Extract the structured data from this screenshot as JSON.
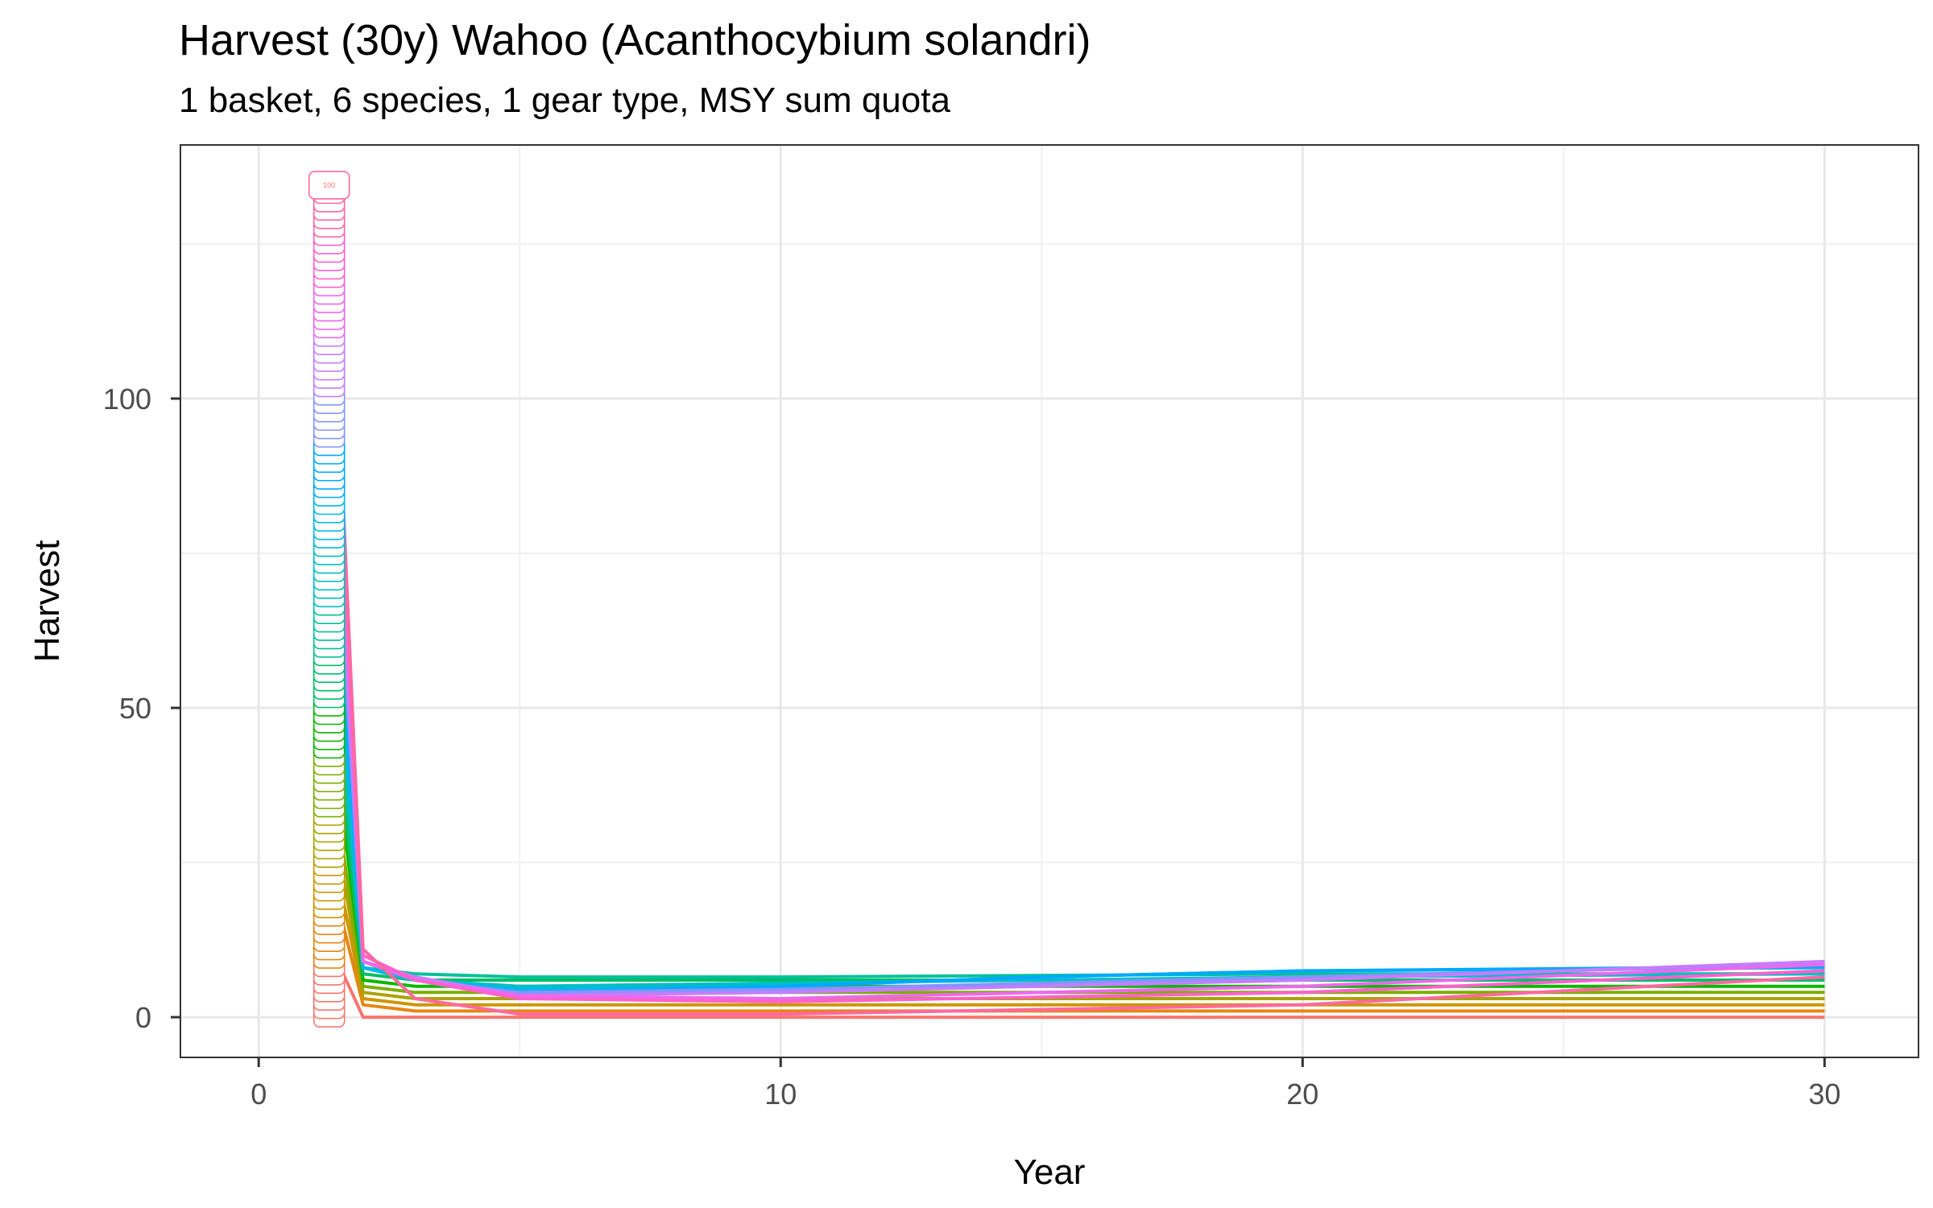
{
  "chart_data": {
    "type": "line",
    "title": "Harvest (30y) Wahoo (Acanthocybium solandri)",
    "subtitle": "1 basket, 6 species, 1 gear type, MSY sum quota",
    "xlabel": "Year",
    "ylabel": "Harvest",
    "xlim": [
      -1.5,
      31.8
    ],
    "ylim": [
      -6.5,
      141
    ],
    "xticks": [
      0,
      10,
      20,
      30
    ],
    "yticks": [
      0,
      50,
      100
    ],
    "grid": true,
    "legend": "none",
    "label_stack": {
      "count": 100,
      "x": 1.35,
      "y_start": 0,
      "y_end": 134.5,
      "shown_label": "100"
    },
    "series": [
      {
        "color": "#F8766D",
        "x": [
          1.35,
          2,
          3,
          5,
          10,
          20,
          30
        ],
        "y": [
          12,
          0,
          0,
          0,
          0,
          0,
          0
        ]
      },
      {
        "color": "#E68613",
        "x": [
          1.35,
          2,
          3,
          5,
          10,
          20,
          30
        ],
        "y": [
          24,
          2,
          1,
          1,
          1,
          1,
          1
        ]
      },
      {
        "color": "#CD9600",
        "x": [
          1.35,
          2,
          3,
          5,
          10,
          20,
          30
        ],
        "y": [
          30,
          3,
          2,
          2,
          2,
          2,
          2
        ]
      },
      {
        "color": "#ABA300",
        "x": [
          1.35,
          2,
          3,
          5,
          10,
          20,
          30
        ],
        "y": [
          36,
          4,
          3,
          3,
          3,
          3,
          3
        ]
      },
      {
        "color": "#7CAE00",
        "x": [
          1.35,
          2,
          3,
          5,
          10,
          20,
          30
        ],
        "y": [
          42,
          5,
          4,
          4,
          4,
          4,
          4
        ]
      },
      {
        "color": "#0CB702",
        "x": [
          1.35,
          2,
          3,
          5,
          10,
          20,
          30
        ],
        "y": [
          50,
          6,
          5,
          5,
          5,
          5,
          5
        ]
      },
      {
        "color": "#00BE67",
        "x": [
          1.35,
          2,
          3,
          5,
          10,
          20,
          30
        ],
        "y": [
          56,
          7,
          6,
          6,
          6,
          6,
          6
        ]
      },
      {
        "color": "#00C19A",
        "x": [
          1.35,
          2,
          3,
          5,
          10,
          20,
          30
        ],
        "y": [
          64,
          8,
          7,
          6.5,
          6.5,
          7,
          7
        ]
      },
      {
        "color": "#00BFC4",
        "x": [
          1.35,
          2,
          3,
          5,
          10,
          20,
          30
        ],
        "y": [
          72,
          8,
          6,
          5,
          5.5,
          6.5,
          7
        ]
      },
      {
        "color": "#00B8E7",
        "x": [
          1.35,
          2,
          3,
          5,
          10,
          15,
          20,
          30
        ],
        "y": [
          80,
          8,
          6,
          4.5,
          5,
          6.5,
          7.5,
          8
        ]
      },
      {
        "color": "#00A9FF",
        "x": [
          1.35,
          2,
          3,
          5,
          10,
          15,
          20,
          30
        ],
        "y": [
          90,
          9,
          6,
          4,
          5,
          6.5,
          7.5,
          8.2
        ]
      },
      {
        "color": "#8494FF",
        "x": [
          1.35,
          2,
          3,
          5,
          10,
          20,
          30
        ],
        "y": [
          100,
          9,
          6,
          4,
          4.5,
          6.5,
          8.5
        ]
      },
      {
        "color": "#C77CFF",
        "x": [
          1.35,
          2,
          3,
          5,
          10,
          20,
          30
        ],
        "y": [
          110,
          9,
          6.5,
          3.5,
          4,
          6,
          9
        ]
      },
      {
        "color": "#ED68ED",
        "x": [
          1.35,
          2,
          3,
          5,
          10,
          20,
          30
        ],
        "y": [
          120,
          9,
          6,
          3.5,
          3,
          5,
          8.5
        ]
      },
      {
        "color": "#FF61CC",
        "x": [
          1.35,
          2,
          3,
          5,
          10,
          20,
          30
        ],
        "y": [
          128,
          10,
          6,
          3,
          2.5,
          4,
          7.5
        ]
      },
      {
        "color": "#FF68A1",
        "x": [
          1.35,
          2,
          3,
          5,
          10,
          20,
          30
        ],
        "y": [
          134,
          11,
          3,
          0.5,
          0.5,
          2,
          6.5
        ]
      }
    ]
  }
}
